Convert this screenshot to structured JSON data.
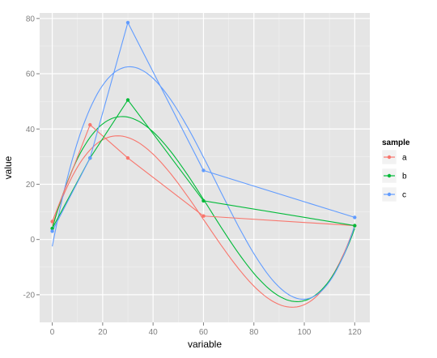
{
  "chart_data": {
    "type": "line",
    "title": "",
    "xlabel": "variable",
    "ylabel": "value",
    "xlim": [
      -5,
      126
    ],
    "ylim": [
      -30,
      82
    ],
    "xticks": [
      0,
      20,
      40,
      60,
      80,
      100,
      120
    ],
    "yticks": [
      -20,
      0,
      20,
      40,
      60,
      80
    ],
    "grid": true,
    "legend": {
      "title": "sample",
      "position": "right"
    },
    "x": [
      0,
      15,
      30,
      60,
      120
    ],
    "series": [
      {
        "name": "a",
        "color": "#F8766D",
        "values": [
          6.5,
          41.5,
          29.5,
          8.5,
          5
        ],
        "smooth": {
          "type": "cubic",
          "x0": 0,
          "y0": 5,
          "x1": 25,
          "y1": 37.5,
          "x2": 96,
          "y2": -24.5,
          "x3": 120,
          "y3": 5
        }
      },
      {
        "name": "b",
        "color": "#00BA38",
        "values": [
          4,
          29.5,
          50.5,
          14,
          5
        ],
        "smooth": {
          "type": "cubic",
          "x0": 0,
          "y0": 4,
          "x1": 28,
          "y1": 44.5,
          "x2": 97,
          "y2": -22.5,
          "x3": 120,
          "y3": 4
        }
      },
      {
        "name": "c",
        "color": "#619CFF",
        "values": [
          3,
          29.5,
          78.5,
          25,
          8
        ],
        "smooth": {
          "type": "cubic",
          "x0": 0,
          "y0": -2.5,
          "x1": 30,
          "y1": 62.5,
          "x2": 98,
          "y2": -21.5,
          "x3": 120,
          "y3": 5
        }
      }
    ]
  }
}
